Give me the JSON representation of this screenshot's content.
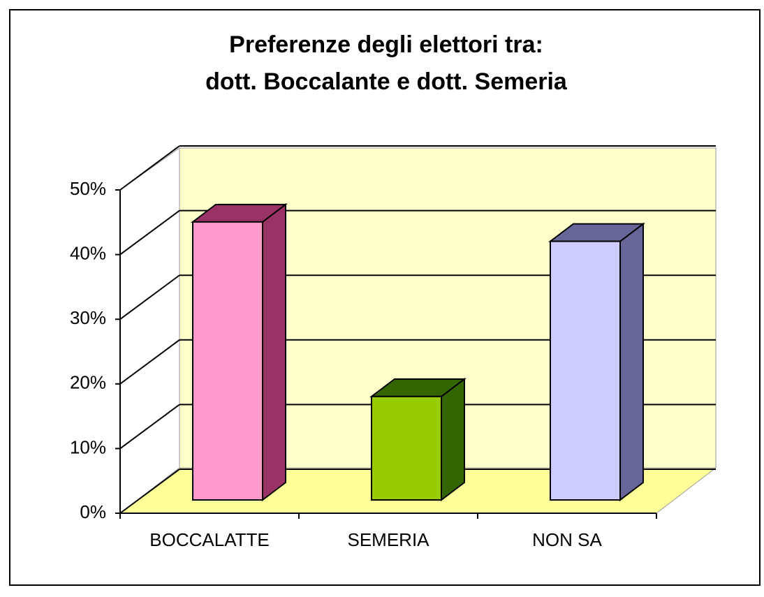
{
  "chart_data": {
    "type": "bar3d",
    "title": [
      "Preferenze degli elettori tra:",
      "dott. Boccalante e dott. Semeria"
    ],
    "categories": [
      "BOCCALATTE",
      "SEMERIA",
      "NON SA"
    ],
    "values": [
      43,
      16,
      40
    ],
    "colors": [
      [
        "#ff99cc",
        "#993366"
      ],
      [
        "#99cc00",
        "#336600"
      ],
      [
        "#ccccff",
        "#666699"
      ]
    ],
    "ylim": [
      0,
      50
    ],
    "yticks": [
      {
        "value": 0,
        "label": "0%"
      },
      {
        "value": 10,
        "label": "10%"
      },
      {
        "value": 20,
        "label": "20%"
      },
      {
        "value": 30,
        "label": "30%"
      },
      {
        "value": 40,
        "label": "40%"
      },
      {
        "value": 50,
        "label": "50%"
      }
    ],
    "grid": true
  }
}
